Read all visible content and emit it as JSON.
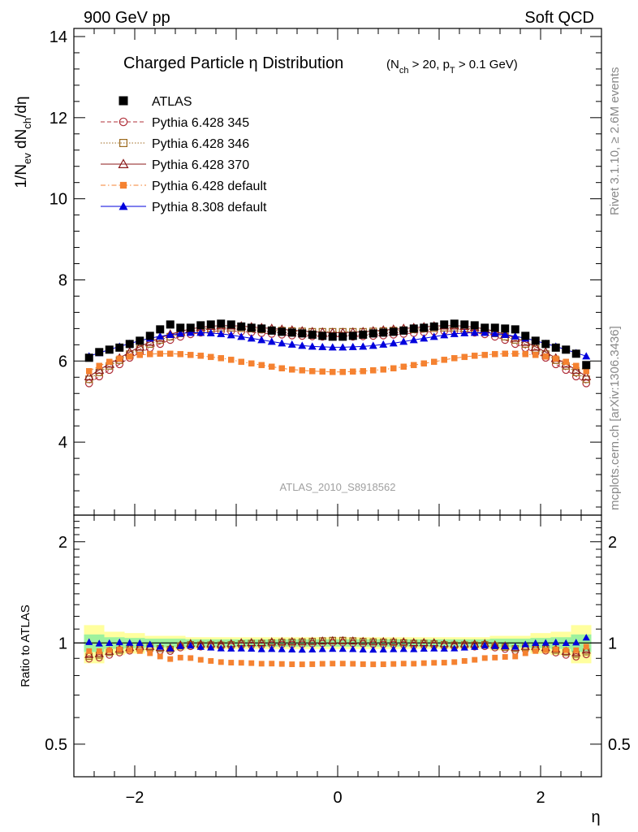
{
  "header": {
    "left": "900 GeV pp",
    "right": "Soft QCD"
  },
  "side_labels": {
    "rivet": "Rivet 3.1.10, ≥ 2.6M events",
    "mcplots": "mcplots.cern.ch [arXiv:1306.3436]"
  },
  "chart_data": [
    {
      "type": "scatter",
      "panel": "main",
      "title_main": "Charged Particle η Distribution",
      "title_cut": "(N_ch > 20, p_T > 0.1 GeV)",
      "ylabel": "1/N_ev dN_ch/dη",
      "xlim": [
        -2.6,
        2.6
      ],
      "ylim": [
        2.2,
        14.2
      ],
      "xticks": [
        -2,
        0,
        2
      ],
      "yticks": [
        4,
        6,
        8,
        10,
        12,
        14
      ],
      "watermark": "ATLAS_2010_S8918562",
      "legend_position": "top-left",
      "x": [
        -2.45,
        -2.35,
        -2.25,
        -2.15,
        -2.05,
        -1.95,
        -1.85,
        -1.75,
        -1.65,
        -1.55,
        -1.45,
        -1.35,
        -1.25,
        -1.15,
        -1.05,
        -0.95,
        -0.85,
        -0.75,
        -0.65,
        -0.55,
        -0.45,
        -0.35,
        -0.25,
        -0.15,
        -0.05,
        0.05,
        0.15,
        0.25,
        0.35,
        0.45,
        0.55,
        0.65,
        0.75,
        0.85,
        0.95,
        1.05,
        1.15,
        1.25,
        1.35,
        1.45,
        1.55,
        1.65,
        1.75,
        1.85,
        1.95,
        2.05,
        2.15,
        2.25,
        2.35,
        2.45
      ],
      "series": [
        {
          "name": "ATLAS",
          "marker": "filled-square",
          "color": "#000000",
          "line": "none",
          "values": [
            6.08,
            6.22,
            6.28,
            6.33,
            6.42,
            6.5,
            6.62,
            6.78,
            6.9,
            6.82,
            6.82,
            6.88,
            6.9,
            6.92,
            6.9,
            6.85,
            6.82,
            6.8,
            6.75,
            6.72,
            6.7,
            6.68,
            6.65,
            6.62,
            6.6,
            6.6,
            6.62,
            6.65,
            6.68,
            6.7,
            6.72,
            6.75,
            6.8,
            6.82,
            6.85,
            6.9,
            6.92,
            6.9,
            6.88,
            6.82,
            6.82,
            6.8,
            6.78,
            6.62,
            6.5,
            6.42,
            6.33,
            6.28,
            6.18,
            5.9
          ]
        },
        {
          "name": "Pythia 6.428 345",
          "marker": "open-circle",
          "color": "#b0303a",
          "line": "dashed",
          "values": [
            5.45,
            5.62,
            5.78,
            5.92,
            6.08,
            6.2,
            6.32,
            6.42,
            6.52,
            6.6,
            6.66,
            6.7,
            6.73,
            6.74,
            6.74,
            6.73,
            6.71,
            6.69,
            6.67,
            6.65,
            6.63,
            6.62,
            6.61,
            6.6,
            6.6,
            6.6,
            6.6,
            6.61,
            6.62,
            6.63,
            6.65,
            6.67,
            6.69,
            6.71,
            6.73,
            6.74,
            6.74,
            6.73,
            6.7,
            6.66,
            6.6,
            6.52,
            6.42,
            6.32,
            6.2,
            6.08,
            5.92,
            5.78,
            5.62,
            5.45
          ]
        },
        {
          "name": "Pythia 6.428 346",
          "marker": "open-square",
          "color": "#9c6a1e",
          "line": "dotted",
          "values": [
            5.55,
            5.72,
            5.88,
            6.02,
            6.17,
            6.3,
            6.42,
            6.52,
            6.6,
            6.68,
            6.74,
            6.78,
            6.81,
            6.82,
            6.82,
            6.81,
            6.8,
            6.78,
            6.76,
            6.75,
            6.74,
            6.73,
            6.72,
            6.72,
            6.72,
            6.72,
            6.72,
            6.72,
            6.73,
            6.74,
            6.75,
            6.76,
            6.78,
            6.8,
            6.81,
            6.82,
            6.82,
            6.81,
            6.78,
            6.74,
            6.68,
            6.6,
            6.52,
            6.42,
            6.3,
            6.17,
            6.02,
            5.88,
            5.72,
            5.55
          ]
        },
        {
          "name": "Pythia 6.428 370",
          "marker": "open-triangle",
          "color": "#8b1a1a",
          "line": "solid",
          "values": [
            5.62,
            5.78,
            5.93,
            6.07,
            6.22,
            6.35,
            6.47,
            6.57,
            6.66,
            6.73,
            6.79,
            6.83,
            6.86,
            6.87,
            6.87,
            6.86,
            6.84,
            6.82,
            6.8,
            6.78,
            6.76,
            6.74,
            6.72,
            6.71,
            6.7,
            6.7,
            6.71,
            6.72,
            6.74,
            6.76,
            6.78,
            6.8,
            6.82,
            6.84,
            6.86,
            6.87,
            6.87,
            6.86,
            6.83,
            6.79,
            6.73,
            6.66,
            6.57,
            6.47,
            6.35,
            6.22,
            6.07,
            5.93,
            5.78,
            5.62
          ]
        },
        {
          "name": "Pythia 6.428 default",
          "marker": "filled-square-small",
          "color": "#f58231",
          "line": "dashdot",
          "values": [
            5.75,
            5.88,
            5.98,
            6.06,
            6.11,
            6.15,
            6.17,
            6.18,
            6.18,
            6.17,
            6.15,
            6.13,
            6.1,
            6.07,
            6.03,
            5.98,
            5.94,
            5.9,
            5.86,
            5.82,
            5.79,
            5.77,
            5.75,
            5.74,
            5.73,
            5.73,
            5.74,
            5.75,
            5.77,
            5.79,
            5.82,
            5.86,
            5.9,
            5.94,
            5.98,
            6.03,
            6.07,
            6.1,
            6.13,
            6.15,
            6.17,
            6.18,
            6.18,
            6.17,
            6.15,
            6.11,
            6.06,
            5.98,
            5.88,
            5.75
          ]
        },
        {
          "name": "Pythia 8.308 default",
          "marker": "filled-triangle",
          "color": "#0000dd",
          "line": "solid",
          "values": [
            6.12,
            6.2,
            6.28,
            6.36,
            6.43,
            6.5,
            6.56,
            6.61,
            6.65,
            6.68,
            6.7,
            6.7,
            6.69,
            6.67,
            6.64,
            6.6,
            6.56,
            6.52,
            6.48,
            6.44,
            6.41,
            6.38,
            6.36,
            6.35,
            6.34,
            6.34,
            6.35,
            6.36,
            6.38,
            6.41,
            6.44,
            6.48,
            6.52,
            6.56,
            6.6,
            6.64,
            6.67,
            6.69,
            6.7,
            6.7,
            6.68,
            6.65,
            6.61,
            6.56,
            6.5,
            6.43,
            6.36,
            6.28,
            6.2,
            6.12
          ]
        }
      ]
    },
    {
      "type": "scatter",
      "panel": "ratio",
      "ylabel": "Ratio to ATLAS",
      "xlabel": "η",
      "xlim": [
        -2.6,
        2.6
      ],
      "ylim": [
        0.4,
        2.4
      ],
      "scale": "log",
      "xticks": [
        -2,
        0,
        2
      ],
      "yticks": [
        0.5,
        1,
        2
      ],
      "reference": 1,
      "uncertainty_bands": {
        "x_edges": [
          -2.5,
          -2.3,
          -2.1,
          -1.9,
          -1.7,
          -1.5,
          -1.3,
          -1.1,
          -0.9,
          -0.7,
          -0.5,
          -0.3,
          -0.1,
          0.1,
          0.3,
          0.5,
          0.7,
          0.9,
          1.1,
          1.3,
          1.5,
          1.7,
          1.9,
          2.1,
          2.3,
          2.5
        ],
        "yellow_halfwidth": [
          0.13,
          0.08,
          0.07,
          0.05,
          0.05,
          0.04,
          0.04,
          0.04,
          0.04,
          0.04,
          0.04,
          0.04,
          0.04,
          0.04,
          0.04,
          0.04,
          0.04,
          0.04,
          0.04,
          0.04,
          0.05,
          0.05,
          0.07,
          0.08,
          0.13
        ],
        "green_halfwidth": [
          0.06,
          0.04,
          0.035,
          0.03,
          0.03,
          0.025,
          0.025,
          0.025,
          0.025,
          0.025,
          0.025,
          0.025,
          0.025,
          0.025,
          0.025,
          0.025,
          0.025,
          0.025,
          0.025,
          0.025,
          0.03,
          0.03,
          0.035,
          0.04,
          0.06
        ]
      }
    }
  ]
}
